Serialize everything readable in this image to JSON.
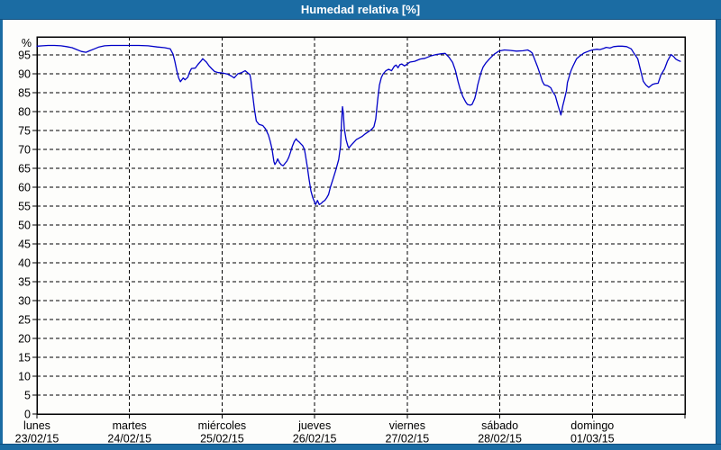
{
  "window": {
    "title": "Humedad relativa [%]",
    "title_bar_color": "#1b6ca3",
    "border_color": "#1b6ca3"
  },
  "chart_data": {
    "type": "line",
    "title": "Humedad relativa [%]",
    "grid": "dashed",
    "legend_position": "none",
    "y_axis": {
      "unit": "%",
      "min": 0,
      "max": 100,
      "tick_step": 5,
      "tick_labels": [
        95,
        90,
        85,
        80,
        75,
        70,
        65,
        60,
        55,
        50,
        45,
        40,
        35,
        30,
        25,
        20,
        15,
        10,
        5,
        0
      ]
    },
    "x_axis": {
      "unit": "day",
      "range_days": 7,
      "ticks": [
        {
          "weekday": "lunes",
          "date": "23/02/15"
        },
        {
          "weekday": "martes",
          "date": "24/02/15"
        },
        {
          "weekday": "miércoles",
          "date": "25/02/15"
        },
        {
          "weekday": "jueves",
          "date": "26/02/15"
        },
        {
          "weekday": "viernes",
          "date": "27/02/15"
        },
        {
          "weekday": "sábado",
          "date": "28/02/15"
        },
        {
          "weekday": "domingo",
          "date": "01/03/15"
        }
      ]
    },
    "series": [
      {
        "name": "Humedad relativa",
        "color": "#0000c8",
        "x_unit": "days_since_monday_00h",
        "points": [
          [
            0.0,
            97.3
          ],
          [
            0.06,
            97.4
          ],
          [
            0.12,
            97.5
          ],
          [
            0.19,
            97.5
          ],
          [
            0.26,
            97.4
          ],
          [
            0.32,
            97.2
          ],
          [
            0.38,
            96.9
          ],
          [
            0.43,
            96.4
          ],
          [
            0.48,
            95.9
          ],
          [
            0.53,
            95.7
          ],
          [
            0.57,
            96.1
          ],
          [
            0.62,
            96.6
          ],
          [
            0.67,
            97.1
          ],
          [
            0.73,
            97.4
          ],
          [
            0.8,
            97.5
          ],
          [
            0.9,
            97.5
          ],
          [
            1.0,
            97.5
          ],
          [
            1.1,
            97.5
          ],
          [
            1.2,
            97.4
          ],
          [
            1.3,
            97.1
          ],
          [
            1.38,
            96.9
          ],
          [
            1.44,
            96.6
          ],
          [
            1.47,
            95.2
          ],
          [
            1.49,
            93.3
          ],
          [
            1.51,
            90.9
          ],
          [
            1.53,
            88.9
          ],
          [
            1.55,
            87.9
          ],
          [
            1.58,
            88.9
          ],
          [
            1.6,
            88.4
          ],
          [
            1.63,
            89.1
          ],
          [
            1.65,
            90.5
          ],
          [
            1.67,
            91.4
          ],
          [
            1.71,
            91.5
          ],
          [
            1.74,
            92.5
          ],
          [
            1.77,
            93.3
          ],
          [
            1.79,
            94.0
          ],
          [
            1.83,
            93.1
          ],
          [
            1.86,
            92.1
          ],
          [
            1.89,
            91.3
          ],
          [
            1.92,
            90.6
          ],
          [
            1.96,
            90.3
          ],
          [
            2.01,
            90.2
          ],
          [
            2.06,
            89.9
          ],
          [
            2.1,
            89.4
          ],
          [
            2.13,
            88.9
          ],
          [
            2.17,
            90.0
          ],
          [
            2.21,
            90.3
          ],
          [
            2.25,
            90.8
          ],
          [
            2.28,
            90.2
          ],
          [
            2.3,
            89.8
          ],
          [
            2.31,
            88.5
          ],
          [
            2.33,
            84.5
          ],
          [
            2.35,
            80.5
          ],
          [
            2.37,
            77.5
          ],
          [
            2.4,
            76.6
          ],
          [
            2.44,
            76.3
          ],
          [
            2.47,
            75.4
          ],
          [
            2.5,
            73.8
          ],
          [
            2.52,
            72.2
          ],
          [
            2.54,
            70.0
          ],
          [
            2.56,
            66.8
          ],
          [
            2.57,
            66.0
          ],
          [
            2.59,
            66.8
          ],
          [
            2.6,
            67.5
          ],
          [
            2.62,
            66.5
          ],
          [
            2.64,
            65.9
          ],
          [
            2.66,
            65.7
          ],
          [
            2.68,
            66.3
          ],
          [
            2.7,
            66.9
          ],
          [
            2.72,
            67.9
          ],
          [
            2.74,
            69.3
          ],
          [
            2.76,
            70.9
          ],
          [
            2.78,
            72.1
          ],
          [
            2.8,
            72.8
          ],
          [
            2.81,
            72.4
          ],
          [
            2.83,
            72.0
          ],
          [
            2.85,
            71.5
          ],
          [
            2.87,
            71.0
          ],
          [
            2.89,
            70.0
          ],
          [
            2.9,
            68.5
          ],
          [
            2.92,
            65.5
          ],
          [
            2.94,
            62.0
          ],
          [
            2.96,
            59.0
          ],
          [
            2.98,
            57.2
          ],
          [
            3.0,
            56.0
          ],
          [
            3.01,
            55.4
          ],
          [
            3.03,
            56.5
          ],
          [
            3.05,
            55.4
          ],
          [
            3.07,
            55.7
          ],
          [
            3.09,
            56.2
          ],
          [
            3.11,
            56.5
          ],
          [
            3.13,
            57.2
          ],
          [
            3.15,
            58.1
          ],
          [
            3.17,
            60.0
          ],
          [
            3.2,
            62.3
          ],
          [
            3.23,
            64.7
          ],
          [
            3.26,
            67.3
          ],
          [
            3.28,
            71.0
          ],
          [
            3.29,
            77.0
          ],
          [
            3.3,
            81.3
          ],
          [
            3.31,
            79.5
          ],
          [
            3.32,
            75.5
          ],
          [
            3.34,
            72.5
          ],
          [
            3.36,
            70.8
          ],
          [
            3.37,
            70.4
          ],
          [
            3.39,
            71.0
          ],
          [
            3.42,
            71.8
          ],
          [
            3.45,
            72.6
          ],
          [
            3.48,
            73.0
          ],
          [
            3.51,
            73.4
          ],
          [
            3.54,
            74.0
          ],
          [
            3.57,
            74.5
          ],
          [
            3.6,
            75.0
          ],
          [
            3.62,
            75.4
          ],
          [
            3.64,
            76.0
          ],
          [
            3.66,
            78.0
          ],
          [
            3.68,
            83.0
          ],
          [
            3.7,
            87.0
          ],
          [
            3.72,
            89.0
          ],
          [
            3.74,
            90.0
          ],
          [
            3.77,
            90.8
          ],
          [
            3.8,
            91.2
          ],
          [
            3.83,
            90.8
          ],
          [
            3.86,
            92.0
          ],
          [
            3.88,
            92.3
          ],
          [
            3.9,
            91.6
          ],
          [
            3.92,
            92.4
          ],
          [
            3.94,
            92.6
          ],
          [
            3.97,
            92.1
          ],
          [
            3.99,
            92.4
          ],
          [
            4.03,
            93.1
          ],
          [
            4.08,
            93.3
          ],
          [
            4.14,
            93.9
          ],
          [
            4.19,
            94.1
          ],
          [
            4.25,
            94.7
          ],
          [
            4.31,
            95.1
          ],
          [
            4.37,
            95.3
          ],
          [
            4.41,
            95.4
          ],
          [
            4.45,
            94.4
          ],
          [
            4.49,
            93.0
          ],
          [
            4.52,
            90.9
          ],
          [
            4.55,
            87.9
          ],
          [
            4.57,
            86.1
          ],
          [
            4.6,
            84.0
          ],
          [
            4.63,
            82.6
          ],
          [
            4.65,
            81.9
          ],
          [
            4.68,
            81.7
          ],
          [
            4.7,
            81.9
          ],
          [
            4.73,
            83.5
          ],
          [
            4.75,
            85.5
          ],
          [
            4.76,
            86.9
          ],
          [
            4.78,
            88.8
          ],
          [
            4.8,
            90.5
          ],
          [
            4.82,
            91.8
          ],
          [
            4.85,
            92.9
          ],
          [
            4.89,
            94.0
          ],
          [
            4.94,
            95.2
          ],
          [
            4.99,
            96.0
          ],
          [
            5.05,
            96.3
          ],
          [
            5.11,
            96.2
          ],
          [
            5.18,
            96.0
          ],
          [
            5.25,
            96.1
          ],
          [
            5.3,
            96.3
          ],
          [
            5.33,
            95.9
          ],
          [
            5.35,
            95.5
          ],
          [
            5.38,
            93.6
          ],
          [
            5.41,
            91.7
          ],
          [
            5.44,
            89.5
          ],
          [
            5.46,
            88.0
          ],
          [
            5.48,
            87.1
          ],
          [
            5.52,
            86.8
          ],
          [
            5.55,
            86.3
          ],
          [
            5.57,
            85.3
          ],
          [
            5.6,
            84.2
          ],
          [
            5.63,
            81.5
          ],
          [
            5.66,
            79.1
          ],
          [
            5.68,
            81.5
          ],
          [
            5.7,
            83.5
          ],
          [
            5.72,
            85.5
          ],
          [
            5.73,
            87.7
          ],
          [
            5.75,
            89.3
          ],
          [
            5.77,
            90.9
          ],
          [
            5.79,
            92.0
          ],
          [
            5.83,
            94.0
          ],
          [
            5.87,
            94.8
          ],
          [
            5.91,
            95.5
          ],
          [
            5.96,
            96.0
          ],
          [
            6.0,
            96.3
          ],
          [
            6.05,
            96.5
          ],
          [
            6.08,
            96.4
          ],
          [
            6.12,
            96.7
          ],
          [
            6.15,
            97.0
          ],
          [
            6.19,
            96.8
          ],
          [
            6.23,
            97.2
          ],
          [
            6.28,
            97.3
          ],
          [
            6.32,
            97.3
          ],
          [
            6.37,
            97.2
          ],
          [
            6.42,
            96.6
          ],
          [
            6.45,
            95.4
          ],
          [
            6.49,
            94.0
          ],
          [
            6.52,
            91.0
          ],
          [
            6.55,
            88.0
          ],
          [
            6.58,
            87.0
          ],
          [
            6.61,
            86.4
          ],
          [
            6.63,
            86.8
          ],
          [
            6.65,
            87.2
          ],
          [
            6.68,
            87.4
          ],
          [
            6.71,
            87.5
          ],
          [
            6.74,
            89.7
          ],
          [
            6.78,
            91.3
          ],
          [
            6.81,
            93.3
          ],
          [
            6.85,
            95.1
          ],
          [
            6.88,
            94.5
          ],
          [
            6.9,
            93.9
          ],
          [
            6.93,
            93.5
          ],
          [
            6.95,
            93.3
          ]
        ]
      }
    ]
  }
}
